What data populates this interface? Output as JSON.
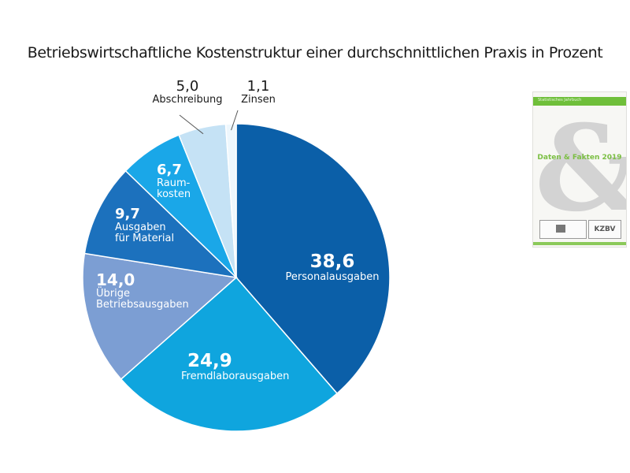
{
  "chart_data": {
    "type": "pie",
    "title": "Betriebswirtschaftliche Kostenstruktur einer durchschnittlichen Praxis in Prozent",
    "slices": [
      {
        "label": "Personalausgaben",
        "display_value": "38,6",
        "value": 38.6,
        "color": "#0b5fa8"
      },
      {
        "label": "Fremdlaborausgaben",
        "display_value": "24,9",
        "value": 24.9,
        "color": "#0fa5de"
      },
      {
        "label": "Übrige Betriebsausgaben",
        "label_lines": [
          "Übrige",
          "Betriebsausgaben"
        ],
        "display_value": "14,0",
        "value": 14.0,
        "color": "#7c9ed3"
      },
      {
        "label": "Ausgaben für Material",
        "label_lines": [
          "Ausgaben",
          "für Material"
        ],
        "display_value": "9,7",
        "value": 9.7,
        "color": "#1c71bd"
      },
      {
        "label": "Raumkosten",
        "label_lines": [
          "Raum-",
          "kosten"
        ],
        "display_value": "6,7",
        "value": 6.7,
        "color": "#1aa7e8"
      },
      {
        "label": "Abschreibung",
        "display_value": "5,0",
        "value": 5.0,
        "color": "#c5e2f5"
      },
      {
        "label": "Zinsen",
        "display_value": "1,1",
        "value": 1.1,
        "color": "#eef7fd"
      }
    ]
  },
  "booklet": {
    "header_text": "Statistisches Jahrbuch",
    "title": "Daten & Fakten 2019",
    "ampersand": "&",
    "logo_text": "KZBV"
  }
}
